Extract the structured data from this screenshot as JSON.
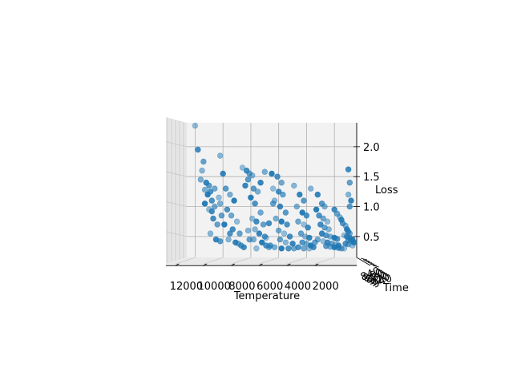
{
  "chart_data": {
    "type": "scatter-3d",
    "view": "3D scatter seen almost edge-on along the Time axis",
    "xlabel": "Temperature",
    "ylabel": "Time",
    "zlabel": "Loss",
    "x_ticks": [
      12000,
      10000,
      8000,
      6000,
      4000,
      2000
    ],
    "x_tick_labels": [
      "12000",
      "10000",
      "8000",
      "6000",
      "4000",
      "2000"
    ],
    "z_ticks": [
      0.5,
      1.0,
      1.5,
      2.0
    ],
    "z_tick_labels": [
      "0.5",
      "1.0",
      "1.5",
      "2.0"
    ],
    "y_tick_labels": [
      "840",
      "860",
      "880",
      "900",
      "920",
      "940"
    ],
    "xlim": [
      12600,
      400
    ],
    "zlim": [
      0.15,
      2.4
    ],
    "marker_color": "#1f77b4",
    "points": [
      [
        12000,
        2.35
      ],
      [
        11800,
        1.95
      ],
      [
        11400,
        1.75
      ],
      [
        11500,
        1.6
      ],
      [
        11200,
        1.4
      ],
      [
        11000,
        1.35
      ],
      [
        11300,
        1.28
      ],
      [
        11100,
        1.2
      ],
      [
        10800,
        1.1
      ],
      [
        10600,
        1.0
      ],
      [
        11000,
        0.95
      ],
      [
        10700,
        0.8
      ],
      [
        10400,
        0.7
      ],
      [
        10900,
        0.55
      ],
      [
        10500,
        0.45
      ],
      [
        10200,
        0.42
      ],
      [
        11600,
        1.45
      ],
      [
        11300,
        1.05
      ],
      [
        10900,
        1.25
      ],
      [
        10600,
        1.3
      ],
      [
        10300,
        1.15
      ],
      [
        10800,
        0.92
      ],
      [
        10100,
        0.85
      ],
      [
        10200,
        1.85
      ],
      [
        10000,
        1.55
      ],
      [
        9800,
        1.3
      ],
      [
        9500,
        1.2
      ],
      [
        9200,
        1.1
      ],
      [
        9700,
        0.95
      ],
      [
        9400,
        0.85
      ],
      [
        9000,
        0.75
      ],
      [
        9300,
        0.62
      ],
      [
        8800,
        0.55
      ],
      [
        9600,
        0.45
      ],
      [
        9100,
        0.4
      ],
      [
        8700,
        0.35
      ],
      [
        10200,
        1.05
      ],
      [
        9900,
        0.7
      ],
      [
        9500,
        0.55
      ],
      [
        8900,
        0.38
      ],
      [
        8600,
        1.65
      ],
      [
        8300,
        1.6
      ],
      [
        8100,
        1.55
      ],
      [
        7900,
        1.52
      ],
      [
        8400,
        1.35
      ],
      [
        7800,
        1.3
      ],
      [
        7500,
        1.25
      ],
      [
        8000,
        1.15
      ],
      [
        7700,
        1.05
      ],
      [
        7300,
        0.9
      ],
      [
        7900,
        0.8
      ],
      [
        7600,
        0.75
      ],
      [
        7100,
        0.7
      ],
      [
        8200,
        0.6
      ],
      [
        7400,
        0.55
      ],
      [
        7000,
        0.5
      ],
      [
        7800,
        0.45
      ],
      [
        7200,
        0.4
      ],
      [
        6900,
        0.35
      ],
      [
        6700,
        0.32
      ],
      [
        7600,
        0.3
      ],
      [
        8500,
        0.32
      ],
      [
        8100,
        0.45
      ],
      [
        7700,
        0.62
      ],
      [
        7300,
        1.4
      ],
      [
        8200,
        1.45
      ],
      [
        7000,
        1.58
      ],
      [
        6500,
        1.55
      ],
      [
        6100,
        1.5
      ],
      [
        5800,
        1.4
      ],
      [
        6400,
        1.3
      ],
      [
        6000,
        1.25
      ],
      [
        5700,
        1.2
      ],
      [
        6300,
        1.1
      ],
      [
        5900,
        1.0
      ],
      [
        5500,
        0.9
      ],
      [
        6200,
        0.8
      ],
      [
        5800,
        0.75
      ],
      [
        5400,
        0.7
      ],
      [
        6000,
        0.6
      ],
      [
        5600,
        0.55
      ],
      [
        5200,
        0.5
      ],
      [
        5900,
        0.45
      ],
      [
        5500,
        0.4
      ],
      [
        5000,
        0.38
      ],
      [
        6600,
        0.35
      ],
      [
        6300,
        0.32
      ],
      [
        5800,
        0.3
      ],
      [
        5300,
        0.3
      ],
      [
        4900,
        0.3
      ],
      [
        6900,
        0.48
      ],
      [
        6700,
        0.72
      ],
      [
        6400,
        1.05
      ],
      [
        4900,
        1.35
      ],
      [
        4500,
        1.2
      ],
      [
        4200,
        1.1
      ],
      [
        4700,
        1.0
      ],
      [
        4300,
        0.9
      ],
      [
        4000,
        0.85
      ],
      [
        4600,
        0.75
      ],
      [
        4200,
        0.7
      ],
      [
        3900,
        0.65
      ],
      [
        4400,
        0.55
      ],
      [
        4100,
        0.5
      ],
      [
        3800,
        0.48
      ],
      [
        4300,
        0.4
      ],
      [
        4000,
        0.38
      ],
      [
        3700,
        0.35
      ],
      [
        4600,
        0.32
      ],
      [
        4200,
        0.3
      ],
      [
        3800,
        0.3
      ],
      [
        3500,
        0.32
      ],
      [
        3400,
        0.4
      ],
      [
        3700,
        1.3
      ],
      [
        3200,
        1.2
      ],
      [
        2900,
        1.05
      ],
      [
        2700,
        1.0
      ],
      [
        3300,
        0.95
      ],
      [
        3100,
        0.85
      ],
      [
        2800,
        0.8
      ],
      [
        2500,
        0.75
      ],
      [
        3000,
        0.7
      ],
      [
        2700,
        0.65
      ],
      [
        2400,
        0.62
      ],
      [
        2900,
        0.55
      ],
      [
        2600,
        0.52
      ],
      [
        2300,
        0.5
      ],
      [
        2000,
        0.48
      ],
      [
        1800,
        0.46
      ],
      [
        3200,
        0.45
      ],
      [
        2800,
        0.42
      ],
      [
        2500,
        0.4
      ],
      [
        2200,
        0.38
      ],
      [
        1900,
        0.36
      ],
      [
        1700,
        0.35
      ],
      [
        2600,
        0.34
      ],
      [
        2300,
        0.33
      ],
      [
        2000,
        0.32
      ],
      [
        1700,
        0.31
      ],
      [
        1500,
        0.3
      ],
      [
        1300,
        0.3
      ],
      [
        2000,
        0.95
      ],
      [
        1800,
        0.88
      ],
      [
        1600,
        0.82
      ],
      [
        1500,
        0.78
      ],
      [
        1400,
        0.72
      ],
      [
        1200,
        0.68
      ],
      [
        1100,
        0.62
      ],
      [
        1000,
        0.58
      ],
      [
        900,
        0.55
      ],
      [
        1300,
        0.52
      ],
      [
        1100,
        0.5
      ],
      [
        900,
        0.48
      ],
      [
        800,
        0.46
      ],
      [
        700,
        0.45
      ],
      [
        1000,
        0.44
      ],
      [
        800,
        0.42
      ],
      [
        600,
        0.4
      ],
      [
        1200,
        0.38
      ],
      [
        1000,
        0.37
      ],
      [
        700,
        0.35
      ],
      [
        1000,
        1.62
      ],
      [
        900,
        1.4
      ],
      [
        1000,
        1.2
      ],
      [
        800,
        1.1
      ],
      [
        900,
        1.0
      ]
    ]
  }
}
